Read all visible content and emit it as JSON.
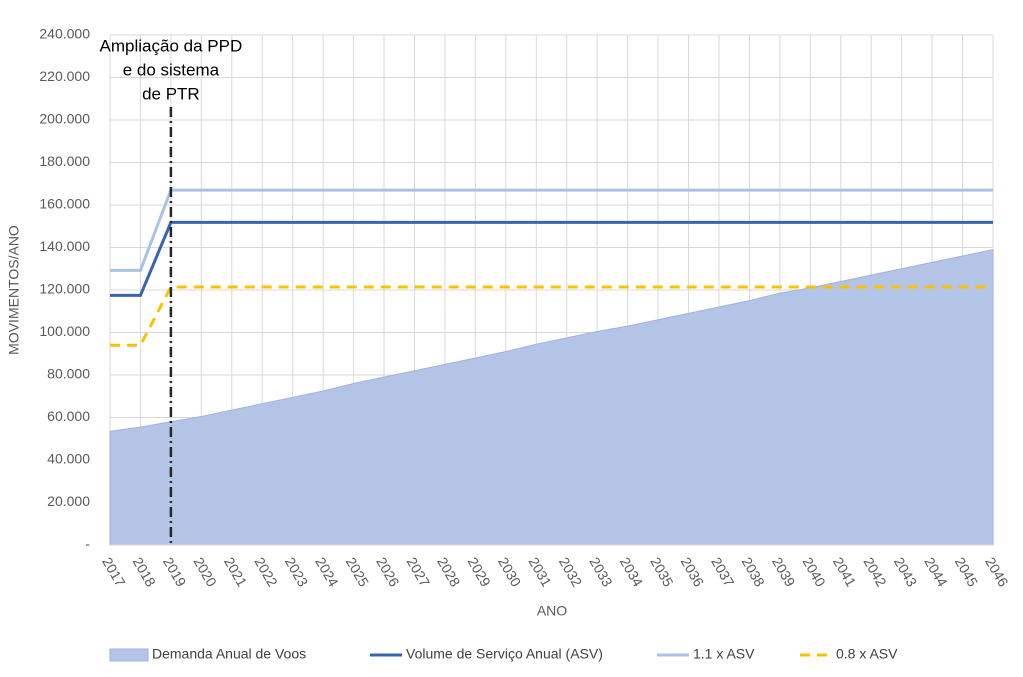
{
  "chart_data": {
    "type": "line",
    "xlabel": "ANO",
    "ylabel": "MOVIMENTOS/ANO",
    "categories": [
      "2017",
      "2018",
      "2019",
      "2020",
      "2021",
      "2022",
      "2023",
      "2024",
      "2025",
      "2026",
      "2027",
      "2028",
      "2029",
      "2030",
      "2031",
      "2032",
      "2033",
      "2034",
      "2035",
      "2036",
      "2037",
      "2038",
      "2039",
      "2040",
      "2041",
      "2042",
      "2043",
      "2044",
      "2045",
      "2046"
    ],
    "ylim": [
      0,
      240000
    ],
    "yticks": [
      {
        "value": 0,
        "label": "-"
      },
      {
        "value": 20000,
        "label": "20.000"
      },
      {
        "value": 40000,
        "label": "40.000"
      },
      {
        "value": 60000,
        "label": "60.000"
      },
      {
        "value": 80000,
        "label": "80.000"
      },
      {
        "value": 100000,
        "label": "100.000"
      },
      {
        "value": 120000,
        "label": "120.000"
      },
      {
        "value": 140000,
        "label": "140.000"
      },
      {
        "value": 160000,
        "label": "160.000"
      },
      {
        "value": 180000,
        "label": "180.000"
      },
      {
        "value": 200000,
        "label": "200.000"
      },
      {
        "value": 220000,
        "label": "220.000"
      },
      {
        "value": 240000,
        "label": "240.000"
      }
    ],
    "grid": true,
    "legend": "bottom",
    "series": [
      {
        "name": "Demanda Anual de Voos",
        "kind": "area",
        "color": "#b4c4e6",
        "values": [
          53500,
          55500,
          58000,
          60500,
          63500,
          66500,
          69500,
          72500,
          76000,
          79000,
          82000,
          85000,
          88000,
          91000,
          94500,
          97500,
          100500,
          103000,
          106000,
          109000,
          112000,
          115000,
          118500,
          121000,
          124000,
          127000,
          130000,
          133000,
          136000,
          139000
        ]
      },
      {
        "name": "Volume de Serviço Anual (ASV)",
        "kind": "line",
        "color": "#3a64b0",
        "values": [
          117500,
          117500,
          151800,
          151800,
          151800,
          151800,
          151800,
          151800,
          151800,
          151800,
          151800,
          151800,
          151800,
          151800,
          151800,
          151800,
          151800,
          151800,
          151800,
          151800,
          151800,
          151800,
          151800,
          151800,
          151800,
          151800,
          151800,
          151800,
          151800,
          151800
        ]
      },
      {
        "name": "1.1 x ASV",
        "kind": "line",
        "color": "#a9c3e6",
        "values": [
          129250,
          129250,
          167000,
          167000,
          167000,
          167000,
          167000,
          167000,
          167000,
          167000,
          167000,
          167000,
          167000,
          167000,
          167000,
          167000,
          167000,
          167000,
          167000,
          167000,
          167000,
          167000,
          167000,
          167000,
          167000,
          167000,
          167000,
          167000,
          167000,
          167000
        ]
      },
      {
        "name": "0.8 x ASV",
        "kind": "dashed",
        "color": "#ffc000",
        "values": [
          94000,
          94000,
          121400,
          121400,
          121400,
          121400,
          121400,
          121400,
          121400,
          121400,
          121400,
          121400,
          121400,
          121400,
          121400,
          121400,
          121400,
          121400,
          121400,
          121400,
          121400,
          121400,
          121400,
          121400,
          121400,
          121400,
          121400,
          121400,
          121400,
          121400
        ]
      }
    ],
    "annotations": [
      {
        "x": "2019",
        "text": [
          "Ampliação da PPD",
          "e do sistema",
          "de PTR"
        ]
      }
    ]
  }
}
